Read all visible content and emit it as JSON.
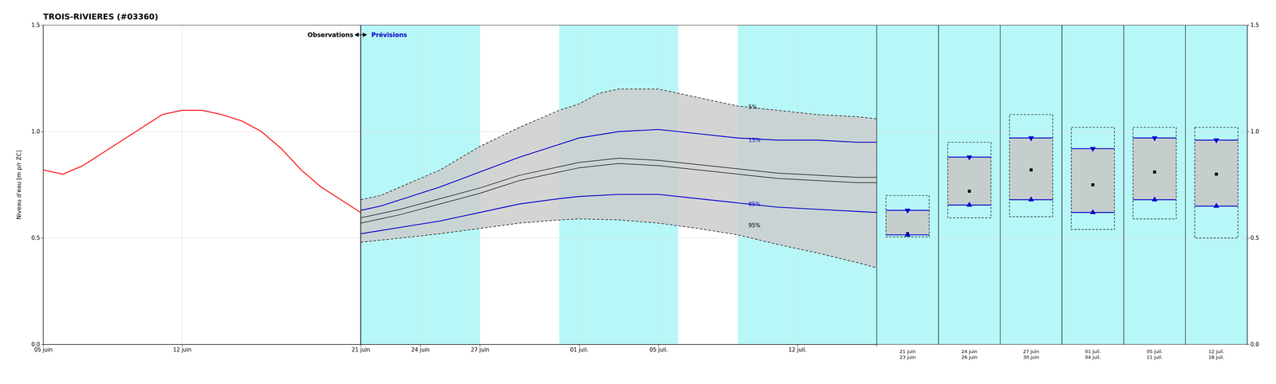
{
  "chart_data": [
    {
      "type": "line",
      "title": "TROIS-RIVIERES (#03360)",
      "ylabel": "Niveau d'eau [m p/r ZC]",
      "xlim": [
        0,
        42
      ],
      "ylim": [
        0.0,
        1.5
      ],
      "xticks": [
        {
          "value": 0,
          "label": "05 juin"
        },
        {
          "value": 7,
          "label": "12 juin"
        },
        {
          "value": 16,
          "label": "21 juin"
        },
        {
          "value": 19,
          "label": "24 juin"
        },
        {
          "value": 22,
          "label": "27 juin"
        },
        {
          "value": 27,
          "label": "01 juil."
        },
        {
          "value": 31,
          "label": "05 juil."
        },
        {
          "value": 38,
          "label": "12 juil."
        }
      ],
      "yticks": [
        {
          "value": 0.0,
          "label": "0.0"
        },
        0.5,
        {
          "value": 1.0,
          "label": "1.0"
        },
        1.5
      ],
      "grid": true,
      "color": "#cccccc",
      "bands": {
        "color": "#7df0f0",
        "ranges": [
          [
            16,
            22
          ],
          [
            26,
            32
          ],
          [
            35,
            42
          ]
        ]
      },
      "vlines": [
        16
      ],
      "arrows": [
        {
          "x": [
            15.7,
            16.3
          ],
          "y": 1.455
        }
      ],
      "annotations": [
        {
          "text": "Observations",
          "x": 15.7,
          "y": 1.455,
          "color": "#000000"
        },
        {
          "text": "Prévisions",
          "x": 16.5,
          "y": 1.455,
          "color": "#0000cc"
        },
        {
          "text": "5%",
          "x": 35.5,
          "y": 1.115,
          "color": "#000000"
        },
        {
          "text": "15%",
          "x": 35.5,
          "y": 0.96,
          "color": "#0000cc"
        },
        {
          "text": "85%",
          "x": 35.5,
          "y": 0.66,
          "color": "#0000cc"
        },
        {
          "text": "95%",
          "x": 35.5,
          "y": 0.56,
          "color": "#000000"
        }
      ],
      "series": [
        {
          "x": [
            16,
            17,
            18,
            20,
            22,
            24,
            26,
            27,
            28,
            29,
            31,
            33,
            35,
            37,
            39,
            41,
            42
          ],
          "values": [
            0.68,
            0.7,
            0.74,
            0.82,
            0.93,
            1.02,
            1.1,
            1.13,
            1.18,
            1.2,
            1.2,
            1.16,
            1.12,
            1.1,
            1.08,
            1.07,
            1.06
          ],
          "color": "#000000",
          "line_style": "dashed"
        },
        {
          "x": [
            16,
            17,
            18,
            20,
            22,
            24,
            26,
            27,
            29,
            31,
            33,
            35,
            37,
            39,
            41,
            42
          ],
          "values": [
            0.48,
            0.49,
            0.5,
            0.52,
            0.545,
            0.57,
            0.585,
            0.59,
            0.585,
            0.57,
            0.545,
            0.515,
            0.47,
            0.43,
            0.385,
            0.36
          ],
          "color": "#000000",
          "line_style": "dashed"
        },
        {
          "x": [
            16,
            17,
            18,
            20,
            22,
            24,
            26,
            27,
            29,
            31,
            33,
            35,
            37,
            39,
            41,
            42
          ],
          "values": [
            0.63,
            0.65,
            0.68,
            0.74,
            0.81,
            0.88,
            0.94,
            0.97,
            1.0,
            1.01,
            0.99,
            0.97,
            0.96,
            0.96,
            0.95,
            0.95
          ],
          "color": "#0000cc",
          "line_style": "solid"
        },
        {
          "x": [
            16,
            17,
            18,
            20,
            22,
            24,
            26,
            27,
            29,
            31,
            33,
            35,
            37,
            39,
            41,
            42
          ],
          "values": [
            0.52,
            0.535,
            0.55,
            0.58,
            0.62,
            0.66,
            0.685,
            0.695,
            0.705,
            0.705,
            0.685,
            0.665,
            0.645,
            0.635,
            0.625,
            0.62
          ],
          "color": "#0000cc",
          "line_style": "solid"
        },
        {
          "x": [
            16,
            17,
            18,
            20,
            22,
            24,
            26,
            27,
            29,
            31,
            33,
            35,
            37,
            39,
            41,
            42
          ],
          "values": [
            0.57,
            0.59,
            0.61,
            0.66,
            0.71,
            0.77,
            0.81,
            0.83,
            0.85,
            0.84,
            0.82,
            0.8,
            0.78,
            0.77,
            0.76,
            0.76
          ],
          "color": "#000000",
          "line_style": "solid"
        },
        {
          "x": [
            16,
            17,
            18,
            20,
            22,
            24,
            26,
            27,
            29,
            31,
            33,
            35,
            37,
            39,
            41,
            42
          ],
          "values": [
            0.595,
            0.615,
            0.635,
            0.685,
            0.735,
            0.795,
            0.835,
            0.855,
            0.875,
            0.865,
            0.845,
            0.825,
            0.805,
            0.795,
            0.785,
            0.785
          ],
          "color": "#000000",
          "line_style": "solid"
        },
        {
          "x": [
            0,
            1,
            2,
            3,
            4,
            5,
            6,
            7,
            8,
            9,
            10,
            11,
            12,
            13,
            14,
            15,
            16
          ],
          "values": [
            0.82,
            0.8,
            0.84,
            0.9,
            0.96,
            1.02,
            1.08,
            1.1,
            1.1,
            1.08,
            1.05,
            1.0,
            0.92,
            0.82,
            0.74,
            0.68,
            0.62
          ],
          "color": "#ff0000",
          "line_style": "solid"
        }
      ]
    },
    {
      "type": "box",
      "categories": [
        "21 juin\n23 juin",
        "24 juin\n26 juin",
        "27 juin\n30 juin",
        "01 juil.\n04 juil.",
        "05 juil.\n11 juil.",
        "12 juil.\n18 juil."
      ],
      "ylim": [
        0.0,
        1.5
      ],
      "yticks": [
        {
          "value": 0.0,
          "label": "0.0"
        },
        0.5,
        {
          "value": 1.0,
          "label": "1.0"
        },
        1.5
      ],
      "grid": true,
      "color": "#c8c8c8",
      "background": "#7df0f0",
      "series": [
        {
          "values": [
            0.7,
            0.95,
            1.08,
            1.02,
            1.02,
            1.02
          ],
          "color": "#000000",
          "line_style": "dashed"
        },
        {
          "values": [
            0.63,
            0.88,
            0.97,
            0.92,
            0.97,
            0.96
          ],
          "color": "#0000cc",
          "marker": "triangle-down"
        },
        {
          "values": [
            0.52,
            0.72,
            0.82,
            0.75,
            0.81,
            0.8
          ],
          "color": "#000000",
          "marker": "square"
        },
        {
          "values": [
            0.515,
            0.655,
            0.68,
            0.62,
            0.68,
            0.65
          ],
          "color": "#0000cc",
          "marker": "triangle-up"
        },
        {
          "values": [
            0.505,
            0.595,
            0.6,
            0.54,
            0.59,
            0.5
          ],
          "color": "#000000",
          "line_style": "dashed"
        }
      ]
    }
  ]
}
